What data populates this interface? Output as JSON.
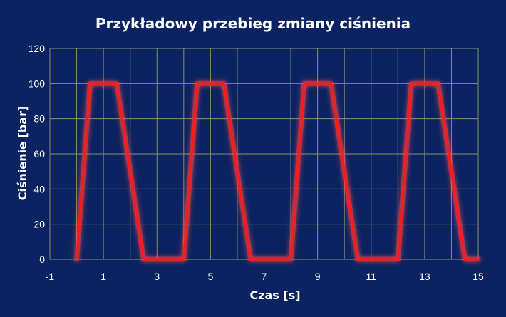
{
  "chart_data": {
    "type": "line",
    "title": "Przykładowy przebieg zmiany ciśnienia",
    "xlabel": "Czas [s]",
    "ylabel": "Ciśnienie [bar]",
    "xlim": [
      -1,
      15
    ],
    "ylim": [
      0,
      120
    ],
    "x_ticks": [
      -1,
      1,
      3,
      5,
      7,
      9,
      11,
      13,
      15
    ],
    "y_ticks": [
      0,
      20,
      40,
      60,
      80,
      100,
      120
    ],
    "grid": true,
    "legend": "none",
    "series": [
      {
        "color": "#ff1a1a",
        "glow_color": "#ff4d4d",
        "x": [
          0,
          0.5,
          1.5,
          2.5,
          4,
          4.5,
          5.5,
          6.5,
          8,
          8.5,
          9.5,
          10.5,
          12,
          12.5,
          13.5,
          14.5,
          15
        ],
        "y": [
          0,
          100,
          100,
          0,
          0,
          100,
          100,
          0,
          0,
          100,
          100,
          0,
          0,
          100,
          100,
          0,
          0
        ]
      }
    ]
  },
  "colors": {
    "background": "#0b2461",
    "grid": "#8a8f73",
    "text": "#ffffff"
  }
}
